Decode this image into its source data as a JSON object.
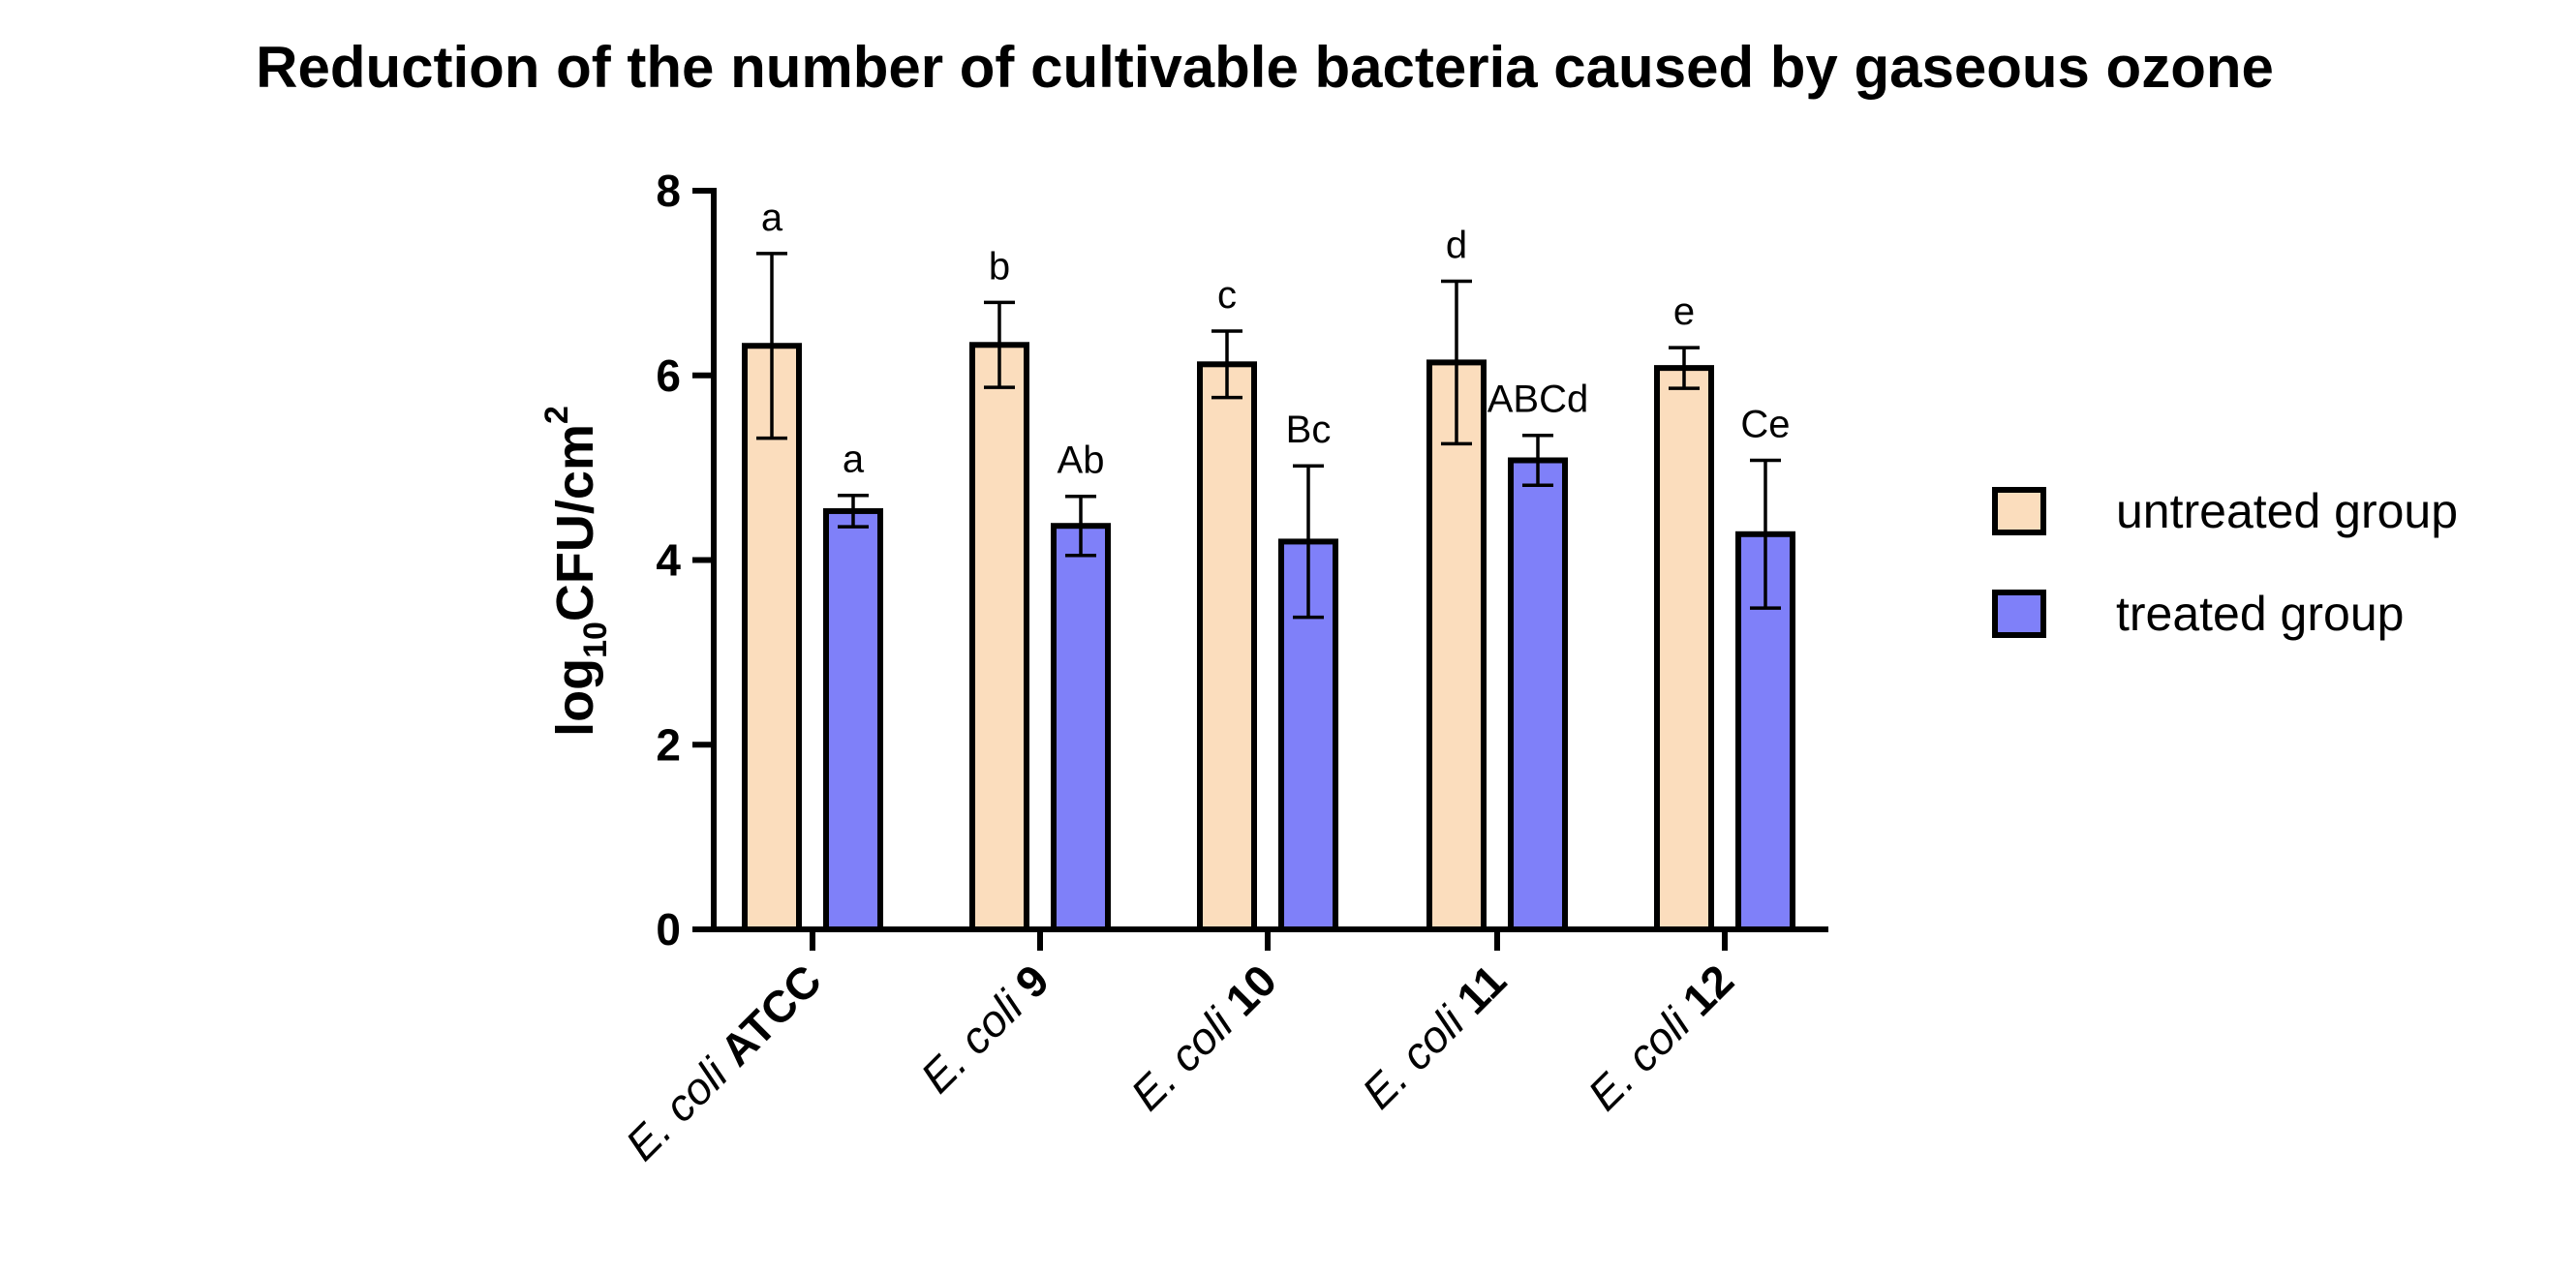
{
  "chart_data": {
    "type": "bar",
    "title": "Reduction of the number of cultivable bacteria caused by gaseous ozone",
    "ylabel": {
      "base": "log",
      "sub": "10",
      "main": "CFU/cm",
      "sup": "2"
    },
    "xlabel": "",
    "ylim": [
      0,
      8
    ],
    "yticks": [
      0,
      2,
      4,
      6,
      8
    ],
    "grid": false,
    "legend_position": "right",
    "categories": [
      {
        "italic": "E. coli",
        "bold": "ATCC"
      },
      {
        "italic": "E. coli",
        "bold": "9"
      },
      {
        "italic": "E. coli",
        "bold": "10"
      },
      {
        "italic": "E. coli",
        "bold": "11"
      },
      {
        "italic": "E. coli",
        "bold": "12"
      }
    ],
    "series": [
      {
        "name": "untreated group",
        "color": "#FBDDBD",
        "values": [
          6.32,
          6.33,
          6.12,
          6.14,
          6.08
        ],
        "errors": [
          1.0,
          0.46,
          0.36,
          0.88,
          0.22
        ],
        "labels": [
          "a",
          "b",
          "c",
          "d",
          "e"
        ]
      },
      {
        "name": "treated group",
        "color": "#7F80F9",
        "values": [
          4.53,
          4.37,
          4.2,
          5.08,
          4.28
        ],
        "errors": [
          0.17,
          0.32,
          0.82,
          0.27,
          0.8
        ],
        "labels": [
          "a",
          "Ab",
          "Bc",
          "ABCd",
          "Ce"
        ]
      }
    ]
  }
}
